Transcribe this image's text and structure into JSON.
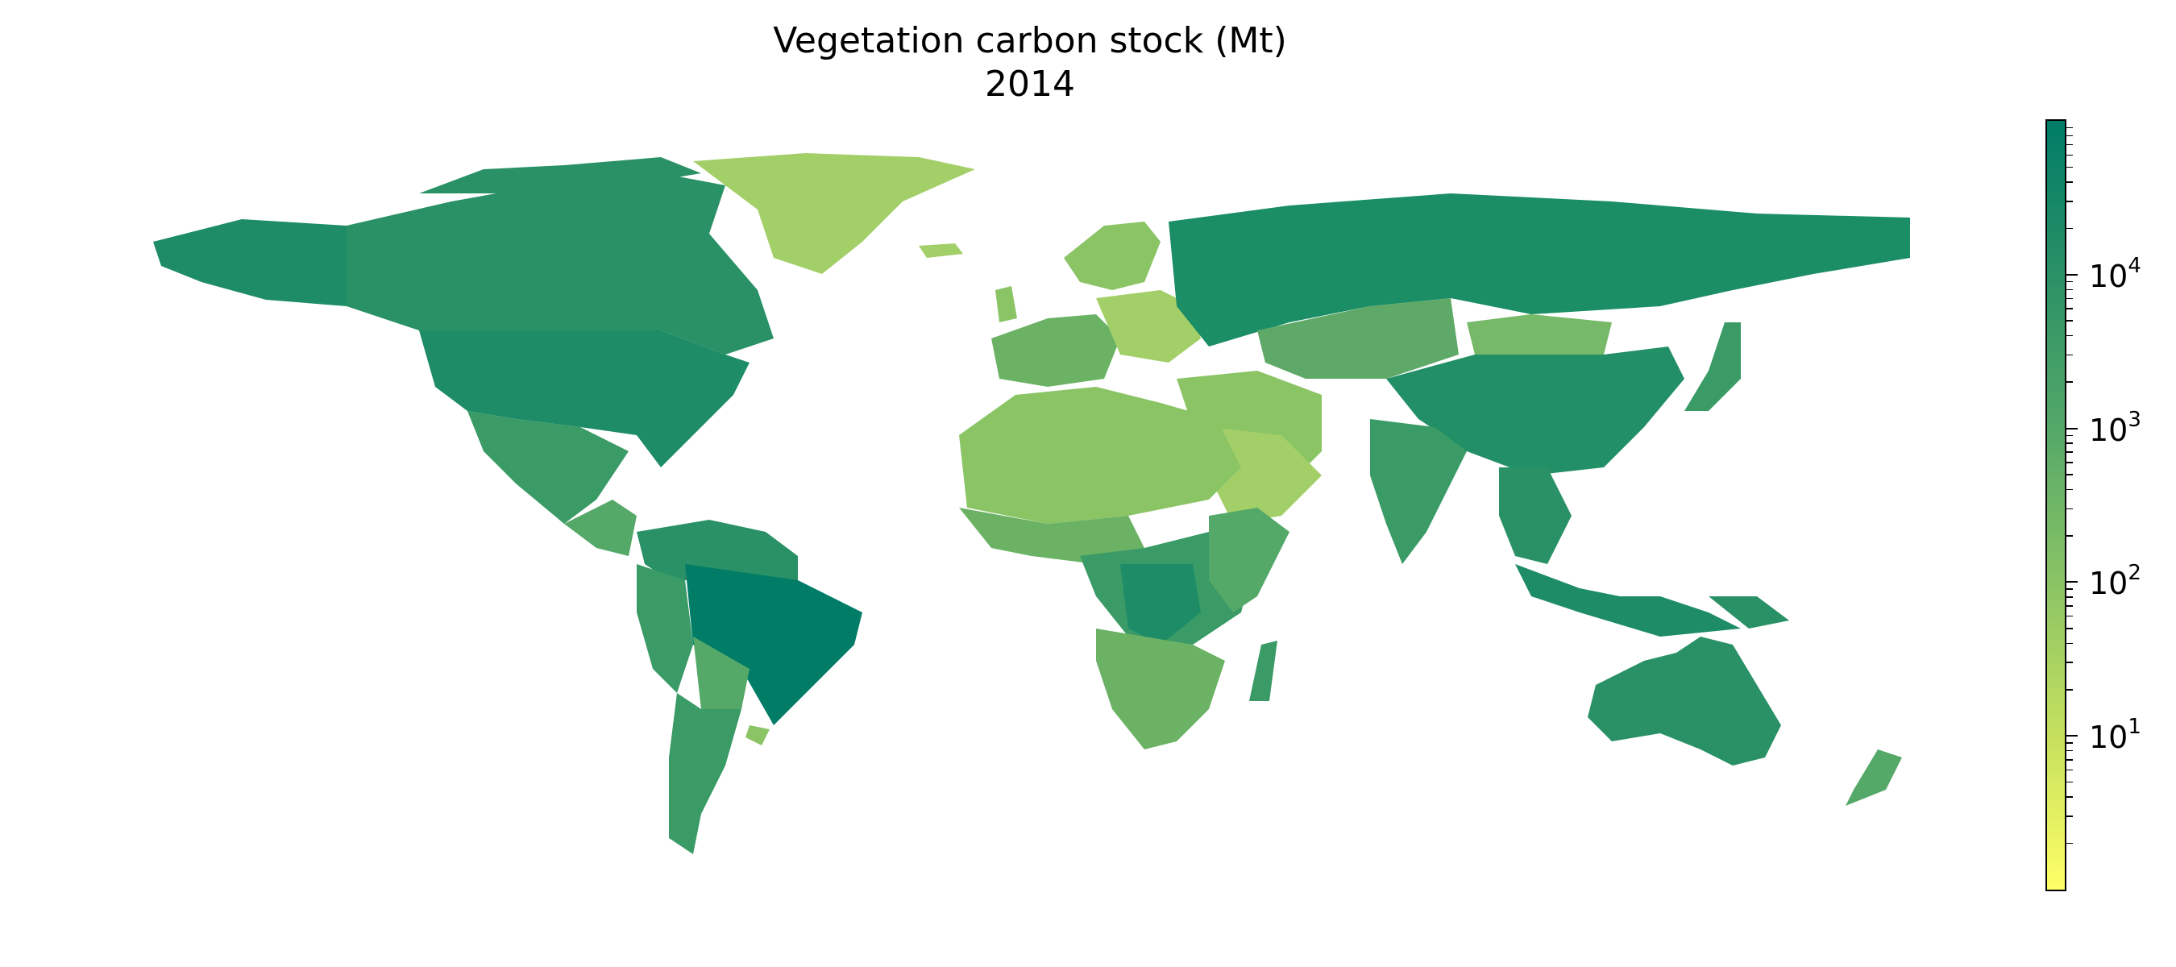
{
  "chart_data": {
    "type": "choropleth",
    "title": "Vegetation carbon stock (Mt)",
    "subtitle": "2014",
    "colorbar": {
      "scale": "log",
      "range": [
        1,
        100000
      ],
      "colors": [
        "#ffff66",
        "#c5e05e",
        "#8ac465",
        "#54a868",
        "#2a9166",
        "#007c67"
      ],
      "ticks": [
        {
          "value": 10,
          "base": "10",
          "exp": "1"
        },
        {
          "value": 100,
          "base": "10",
          "exp": "2"
        },
        {
          "value": 1000,
          "base": "10",
          "exp": "3"
        },
        {
          "value": 10000,
          "base": "10",
          "exp": "4"
        }
      ]
    }
  }
}
